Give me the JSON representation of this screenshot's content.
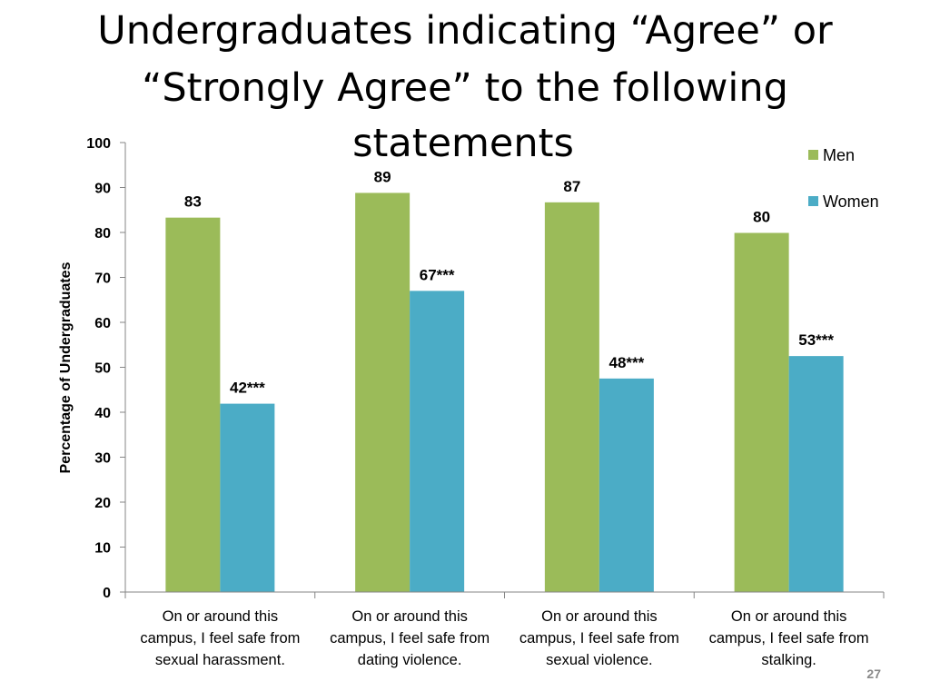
{
  "chart_data": {
    "type": "bar",
    "title": [
      "Undergraduates indicating “Agree” or",
      "“Strongly Agree” to the following",
      "statements"
    ],
    "ylabel": "Percentage of Undergraduates",
    "xlabel": "",
    "ylim": [
      0,
      100
    ],
    "yticks": [
      "0",
      "10",
      "20",
      "30",
      "40",
      "50",
      "60",
      "70",
      "80",
      "90",
      "100"
    ],
    "grid": false,
    "legend_position": "top-right",
    "categories": [
      [
        "On or around this",
        "campus, I feel safe from",
        "sexual harassment."
      ],
      [
        "On or around this",
        "campus, I feel safe from",
        "dating violence."
      ],
      [
        "On or around this",
        "campus, I feel safe from",
        "sexual violence."
      ],
      [
        "On or around this",
        "campus, I feel safe from",
        "stalking."
      ]
    ],
    "series": [
      {
        "name": "Men",
        "color": "#9BBB59",
        "values": [
          83.3,
          88.8,
          86.7,
          79.9
        ],
        "labels": [
          "83",
          "89",
          "87",
          "80"
        ]
      },
      {
        "name": "Women",
        "color": "#4BACC6",
        "values": [
          41.9,
          67.0,
          47.5,
          52.5
        ],
        "labels": [
          "42***",
          "67***",
          "48***",
          "53***"
        ]
      }
    ]
  },
  "page_number": "27"
}
